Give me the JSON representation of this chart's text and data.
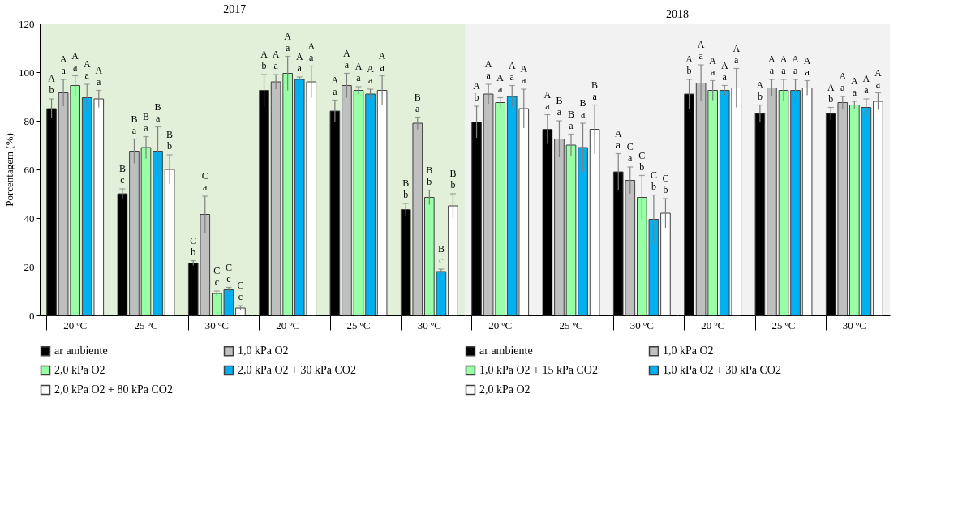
{
  "chart_data": [
    {
      "type": "bar",
      "title": "2017",
      "ylabel": "Porcentagem  (%)",
      "ylim": [
        0,
        120
      ],
      "yticks": [
        0,
        20,
        40,
        60,
        80,
        100,
        120
      ],
      "legend": "bottom",
      "categories": [
        "20 ºC",
        "25 ºC",
        "30 ºC"
      ],
      "series": [
        {
          "name": "ar ambiente",
          "color": "#000000",
          "values": [
            85,
            50,
            21.5
          ],
          "errors": [
            4,
            2,
            1
          ]
        },
        {
          "name": "1,0 kPa O2",
          "color": "#bfbfbf",
          "values": [
            91.5,
            67.5,
            41.5
          ],
          "errors": [
            5.5,
            5,
            7.5
          ]
        },
        {
          "name": "2,0 kPa O2",
          "color": "#99ffa6",
          "values": [
            94.5,
            69,
            9
          ],
          "errors": [
            4,
            4.5,
            1
          ]
        },
        {
          "name": "2,0 kPa O2 + 30 kPa CO2",
          "color": "#00b0f0",
          "values": [
            89.5,
            67.5,
            10.5
          ],
          "errors": [
            5.5,
            10,
            1
          ]
        },
        {
          "name": "2,0 kPa O2 + 80 kPa CO2",
          "color": "#ffffff",
          "values": [
            89,
            60,
            3
          ],
          "errors": [
            3.5,
            6,
            1
          ]
        }
      ],
      "annotations": [
        "A\nb",
        "A\na",
        "A\na",
        "A\na",
        "A\na",
        "B\nc",
        "B\na",
        "B\na",
        "B\na",
        "B\nb",
        "C\nb",
        "C\na",
        "C\nc",
        "C\nc",
        "C\nc"
      ]
    },
    {
      "type": "bar",
      "ylim": [
        0,
        120
      ],
      "yticks": [
        0,
        20,
        40,
        60,
        80,
        100,
        120
      ],
      "tick_labels": "x",
      "categories": [
        "20 ºC",
        "25 ºC",
        "30 ºC"
      ],
      "series": [
        {
          "color": "#000000",
          "values": [
            92.5,
            84,
            43.5
          ],
          "errors": [
            6.5,
            4.5,
            2.5
          ]
        },
        {
          "color": "#bfbfbf",
          "values": [
            96,
            94.5,
            79
          ],
          "errors": [
            3,
            5,
            2.5
          ]
        },
        {
          "color": "#99ffa6",
          "values": [
            99.5,
            92.5,
            48.5
          ],
          "errors": [
            7,
            1.5,
            3
          ]
        },
        {
          "color": "#00b0f0",
          "values": [
            97,
            91,
            18
          ],
          "errors": [
            1,
            2,
            1
          ]
        },
        {
          "color": "#ffffff",
          "values": [
            96,
            92.5,
            45
          ],
          "errors": [
            6.5,
            6,
            5
          ]
        }
      ],
      "annotations": [
        "A\nb",
        "A\na",
        "A\na",
        "A\na",
        "A\na",
        "A\na",
        "A\na",
        "A\na",
        "A\na",
        "A\na",
        "B\nb",
        "B\na",
        "B\nb",
        "B\nc",
        "B\nb"
      ]
    },
    {
      "type": "bar",
      "title": "2018",
      "ylim": [
        0,
        120
      ],
      "yticks": [
        0,
        20,
        40,
        60,
        80,
        100,
        120
      ],
      "legend": "bottom",
      "tick_labels": "x",
      "categories": [
        "20 ºC",
        "25 ºC",
        "30 ºC"
      ],
      "series": [
        {
          "name": "ar ambiente",
          "color": "#000000",
          "values": [
            79.5,
            76.5,
            59
          ],
          "errors": [
            6.5,
            6,
            7.5
          ]
        },
        {
          "name": "1,0 kPa O2",
          "color": "#bfbfbf",
          "values": [
            91,
            72.5,
            55.5
          ],
          "errors": [
            4,
            7.5,
            5.5
          ]
        },
        {
          "name": "1,0 kPa O2 + 15 kPa CO2",
          "color": "#99ffa6",
          "values": [
            87.5,
            70,
            48.5
          ],
          "errors": [
            2,
            4.5,
            9
          ]
        },
        {
          "name": "1,0 kPa O2 + 30 kPa CO2",
          "color": "#00b0f0",
          "values": [
            90,
            69,
            39.5
          ],
          "errors": [
            4.5,
            10,
            10
          ]
        },
        {
          "name": "2,0 kPa O2",
          "color": "#ffffff",
          "values": [
            85,
            76.5,
            42
          ],
          "errors": [
            8,
            10,
            6
          ]
        }
      ],
      "annotations": [
        "A\nb",
        "A\na",
        "A\na",
        "A\na",
        "A\na",
        "A\na",
        "B\na",
        "B\na",
        "B\na",
        "B\na",
        "A\na",
        "C\na",
        "C\nb",
        "C\nb",
        "C\nb"
      ]
    },
    {
      "type": "bar",
      "ylim": [
        0,
        120
      ],
      "yticks": [
        0,
        20,
        40,
        60,
        80,
        100,
        120
      ],
      "tick_labels": "x",
      "categories": [
        "20 ºC",
        "25 ºC",
        "30 ºC"
      ],
      "series": [
        {
          "color": "#000000",
          "values": [
            91,
            83,
            83
          ],
          "errors": [
            6,
            3.5,
            2.5
          ]
        },
        {
          "color": "#bfbfbf",
          "values": [
            95.5,
            93.5,
            87.5
          ],
          "errors": [
            7.5,
            3.5,
            2.5
          ]
        },
        {
          "color": "#99ffa6",
          "values": [
            92.5,
            92.5,
            86.5
          ],
          "errors": [
            4,
            4.5,
            1.5
          ]
        },
        {
          "color": "#00b0f0",
          "values": [
            92.5,
            92.5,
            85.5
          ],
          "errors": [
            2,
            4.5,
            3.5
          ]
        },
        {
          "color": "#ffffff",
          "values": [
            93.5,
            93.5,
            88
          ],
          "errors": [
            8,
            3,
            3.5
          ]
        }
      ],
      "annotations": [
        "A\nb",
        "A\na",
        "A\na",
        "A\na",
        "A\na",
        "A\nb",
        "A\na",
        "A\na",
        "A\na",
        "A\na",
        "A\nb",
        "A\na",
        "A\na",
        "A\na",
        "A\na"
      ]
    }
  ]
}
